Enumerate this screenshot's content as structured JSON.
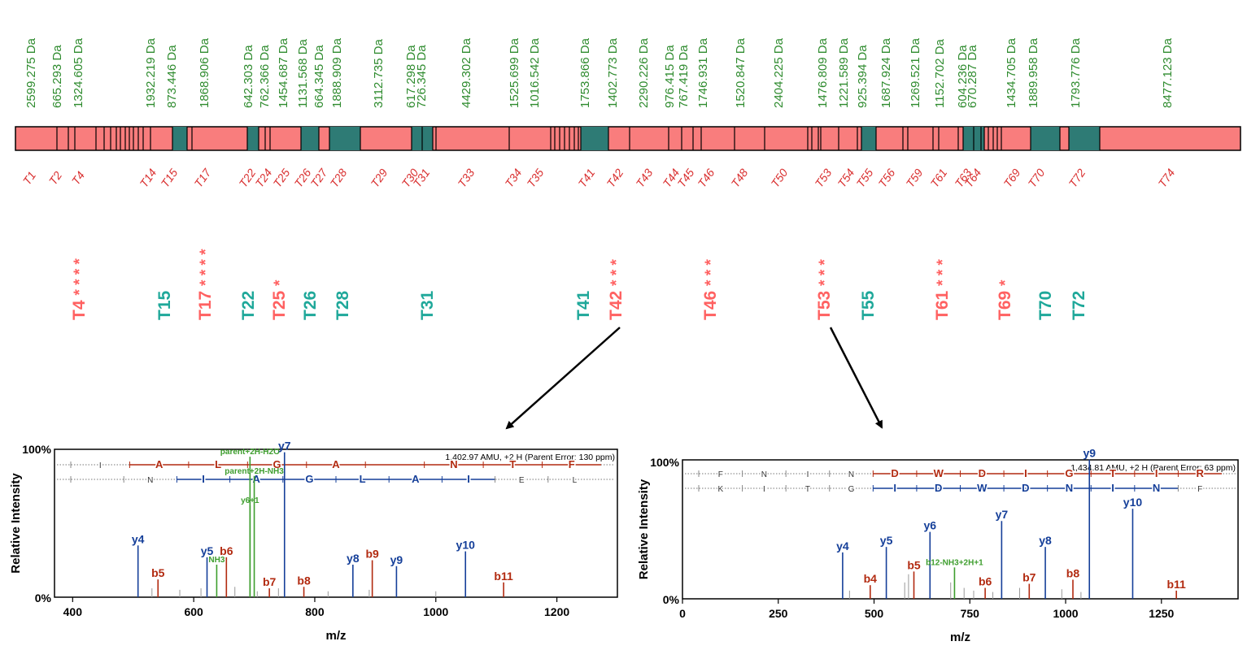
{
  "colors": {
    "mass_text": "#2e8b2e",
    "label_red": "#ff6161",
    "label_teal": "#1fa89a",
    "bar_red": "#f97d7d",
    "bar_teal": "#2e7b75",
    "b_ion": "#b22a10",
    "y_ion": "#153f99",
    "other_ion": "#3e9e2e"
  },
  "masses": [
    {
      "text": "2599.275 Da"
    },
    {
      "text": "665.293 Da"
    },
    {
      "text": "1324.605 Da"
    },
    {
      "text": "1932.219 Da"
    },
    {
      "text": "873.446 Da"
    },
    {
      "text": "1868.906 Da"
    },
    {
      "text": "642.303 Da"
    },
    {
      "text": "762.366 Da"
    },
    {
      "text": "1454.687 Da"
    },
    {
      "text": "1131.568 Da"
    },
    {
      "text": "664.345 Da"
    },
    {
      "text": "1888.909 Da"
    },
    {
      "text": "3112.735 Da"
    },
    {
      "text": "617.298 Da"
    },
    {
      "text": "726.345 Da"
    },
    {
      "text": "4429.302 Da"
    },
    {
      "text": "1525.699 Da"
    },
    {
      "text": "1016.542 Da"
    },
    {
      "text": "1753.866 Da"
    },
    {
      "text": "1402.773 Da"
    },
    {
      "text": "2290.226 Da"
    },
    {
      "text": "976.415 Da"
    },
    {
      "text": "767.419 Da"
    },
    {
      "text": "1746.931 Da"
    },
    {
      "text": "1520.847 Da"
    },
    {
      "text": "2404.225 Da"
    },
    {
      "text": "1476.809 Da"
    },
    {
      "text": "1221.589 Da"
    },
    {
      "text": "925.394 Da"
    },
    {
      "text": "1687.924 Da"
    },
    {
      "text": "1269.521 Da"
    },
    {
      "text": "1152.702 Da"
    },
    {
      "text": "604.236 Da"
    },
    {
      "text": "670.287 Da"
    },
    {
      "text": "1434.705 Da"
    },
    {
      "text": "1889.958 Da"
    },
    {
      "text": "1793.776 Da"
    },
    {
      "text": "8477.123 Da"
    }
  ],
  "peptides": [
    "T1",
    "T2",
    "T4",
    "T14",
    "T15",
    "T17",
    "T22",
    "T24",
    "T25",
    "T26",
    "T27",
    "T28",
    "T29",
    "T30",
    "T31",
    "T33",
    "T34",
    "T35",
    "T41",
    "T42",
    "T43",
    "T44",
    "T45",
    "T46",
    "T48",
    "T50",
    "T53",
    "T54",
    "T55",
    "T56",
    "T59",
    "T61",
    "T63",
    "T64",
    "T69",
    "T70",
    "T72",
    "T74"
  ],
  "highlights": [
    {
      "label": "T4",
      "stars": "* * * *",
      "color": "red"
    },
    {
      "label": "T15",
      "stars": "",
      "color": "teal"
    },
    {
      "label": "T17",
      "stars": "* * * *",
      "color": "red"
    },
    {
      "label": "T22",
      "stars": "",
      "color": "teal"
    },
    {
      "label": "T25",
      "stars": "*",
      "color": "red"
    },
    {
      "label": "T26",
      "stars": "",
      "color": "teal"
    },
    {
      "label": "T28",
      "stars": "",
      "color": "teal"
    },
    {
      "label": "T31",
      "stars": "",
      "color": "teal"
    },
    {
      "label": "T41",
      "stars": "",
      "color": "teal"
    },
    {
      "label": "T42",
      "stars": "* * *",
      "color": "red"
    },
    {
      "label": "T46",
      "stars": "* * *",
      "color": "red"
    },
    {
      "label": "T53",
      "stars": "* * *",
      "color": "red"
    },
    {
      "label": "T55",
      "stars": "",
      "color": "teal"
    },
    {
      "label": "T61",
      "stars": "* * *",
      "color": "red"
    },
    {
      "label": "T69",
      "stars": "*",
      "color": "red"
    },
    {
      "label": "T70",
      "stars": "",
      "color": "teal"
    },
    {
      "label": "T72",
      "stars": "",
      "color": "teal"
    }
  ],
  "spectrum_left": {
    "ylabel": "Relative Intensity",
    "xlabel": "m/z",
    "y_top": "100%",
    "y_bottom": "0%",
    "xticks": [
      "400",
      "600",
      "800",
      "1000",
      "1200"
    ],
    "info": "1,402.97 AMU, +2 H (Parent Error: 130 ppm)",
    "b_seq": [
      "I",
      "A",
      "L",
      "G",
      "A",
      "",
      "N",
      "T",
      "F"
    ],
    "y_seq": [
      "",
      "N",
      "I",
      "A",
      "G",
      "L",
      "A",
      "I",
      "E",
      "L"
    ],
    "xrange": [
      370,
      1300
    ],
    "peaks": [
      {
        "label": "y4",
        "mz": 508,
        "h": 0.35,
        "type": "y"
      },
      {
        "label": "b5",
        "mz": 541,
        "h": 0.12,
        "type": "b"
      },
      {
        "label": "y5",
        "mz": 622,
        "h": 0.27,
        "type": "y"
      },
      {
        "label": "NH3",
        "mz": 638,
        "h": 0.22,
        "type": "g"
      },
      {
        "label": "b6",
        "mz": 654,
        "h": 0.27,
        "type": "b"
      },
      {
        "label": "y6+1",
        "mz": 693,
        "h": 0.62,
        "type": "g"
      },
      {
        "label": "b7",
        "mz": 725,
        "h": 0.06,
        "type": "b"
      },
      {
        "label": "parent+2H-H2O",
        "mz": 693,
        "h": 0.95,
        "type": "g"
      },
      {
        "label": "parent+2H-NH3",
        "mz": 700,
        "h": 0.82,
        "type": "g"
      },
      {
        "label": "y7",
        "mz": 750,
        "h": 0.98,
        "type": "y"
      },
      {
        "label": "b8",
        "mz": 782,
        "h": 0.07,
        "type": "b"
      },
      {
        "label": "y8",
        "mz": 863,
        "h": 0.22,
        "type": "y"
      },
      {
        "label": "b9",
        "mz": 895,
        "h": 0.25,
        "type": "b"
      },
      {
        "label": "y9",
        "mz": 935,
        "h": 0.21,
        "type": "y"
      },
      {
        "label": "y10",
        "mz": 1049,
        "h": 0.31,
        "type": "y"
      },
      {
        "label": "b11",
        "mz": 1112,
        "h": 0.1,
        "type": "b"
      }
    ]
  },
  "spectrum_right": {
    "ylabel": "Relative Intensity",
    "xlabel": "m/z",
    "y_top": "100%",
    "y_bottom": "0%",
    "xticks": [
      "0",
      "250",
      "500",
      "750",
      "1000",
      "1250"
    ],
    "info": "1,434.81 AMU, +2 H (Parent Error: 63 ppm)",
    "b_seq": [
      "F",
      "N",
      "I",
      "N",
      "D",
      "W",
      "D",
      "I",
      "G",
      "T",
      "I",
      "R"
    ],
    "y_seq": [
      "K",
      "I",
      "T",
      "G",
      "I",
      "D",
      "W",
      "D",
      "N",
      "I",
      "N",
      "F"
    ],
    "xrange": [
      0,
      1450
    ],
    "peaks": [
      {
        "label": "y4",
        "mz": 418,
        "h": 0.34,
        "type": "y"
      },
      {
        "label": "b4",
        "mz": 490,
        "h": 0.1,
        "type": "b"
      },
      {
        "label": "y5",
        "mz": 532,
        "h": 0.38,
        "type": "y"
      },
      {
        "label": "b5",
        "mz": 604,
        "h": 0.2,
        "type": "b"
      },
      {
        "label": "y6",
        "mz": 646,
        "h": 0.49,
        "type": "y"
      },
      {
        "label": "b12-NH3+2H+1",
        "mz": 710,
        "h": 0.23,
        "type": "g"
      },
      {
        "label": "b6",
        "mz": 790,
        "h": 0.08,
        "type": "b"
      },
      {
        "label": "y7",
        "mz": 833,
        "h": 0.57,
        "type": "y"
      },
      {
        "label": "b7",
        "mz": 905,
        "h": 0.11,
        "type": "b"
      },
      {
        "label": "y8",
        "mz": 947,
        "h": 0.38,
        "type": "y"
      },
      {
        "label": "b8",
        "mz": 1019,
        "h": 0.14,
        "type": "b"
      },
      {
        "label": "y9",
        "mz": 1062,
        "h": 1.02,
        "type": "y"
      },
      {
        "label": "y10",
        "mz": 1175,
        "h": 0.66,
        "type": "y"
      },
      {
        "label": "b11",
        "mz": 1289,
        "h": 0.06,
        "type": "b"
      }
    ]
  }
}
